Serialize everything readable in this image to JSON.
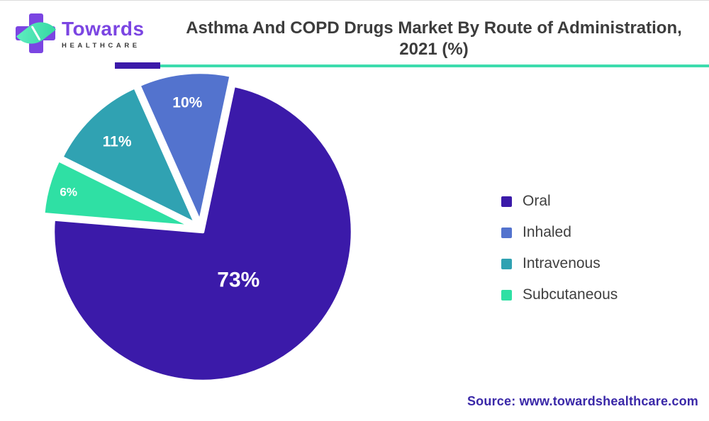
{
  "header": {
    "logo": {
      "brand": "Towards",
      "subtext": "HEALTHCARE"
    },
    "title_line1": "Asthma And COPD Drugs Market By Route of Administration,",
    "title_line2": "2021 (%)"
  },
  "chart_data": {
    "type": "pie",
    "title": "Asthma And COPD Drugs Market By Route of Administration, 2021 (%)",
    "legend_position": "right",
    "data_labels": "inside, white, percent",
    "slices": [
      {
        "label": "Oral",
        "value": 73,
        "data_label": "73%",
        "color": "#3B1AA9"
      },
      {
        "label": "Inhaled",
        "value": 10,
        "data_label": "10%",
        "color": "#5373CE"
      },
      {
        "label": "Intravenous",
        "value": 11,
        "data_label": "11%",
        "color": "#30A2B2"
      },
      {
        "label": "Subcutaneous",
        "value": 6,
        "data_label": "6%",
        "color": "#2FE0A4"
      }
    ]
  },
  "decor": {
    "rule_purple": "#3B1AA9",
    "rule_green": "#3DDCAD"
  },
  "colors": {
    "logo_purple": "#7B45E2",
    "leaf_mint": "#49E3AF",
    "title_text": "#3C3C3C",
    "legend_text": "#3F3F3F",
    "source_text": "#3A28A8"
  },
  "source": {
    "text": "Source: www.towardshealthcare.com"
  }
}
